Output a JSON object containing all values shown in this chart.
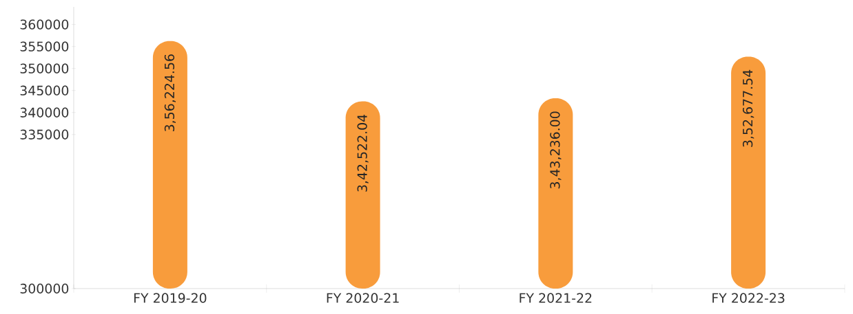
{
  "chart_data": {
    "type": "bar",
    "categories": [
      "FY 2019-20",
      "FY 2020-21",
      "FY 2021-22",
      "FY 2022-23"
    ],
    "values": [
      356224.56,
      342522.04,
      343236.0,
      352677.54
    ],
    "value_labels": [
      "3,56,224.56",
      "3,42,522.04",
      "3,43,236.00",
      "3,52,677.54"
    ],
    "color": "#f89c3c",
    "ylim": [
      300000,
      364000
    ],
    "yticks": [
      300000,
      335000,
      340000,
      345000,
      350000,
      355000,
      360000
    ],
    "grid": false
  }
}
